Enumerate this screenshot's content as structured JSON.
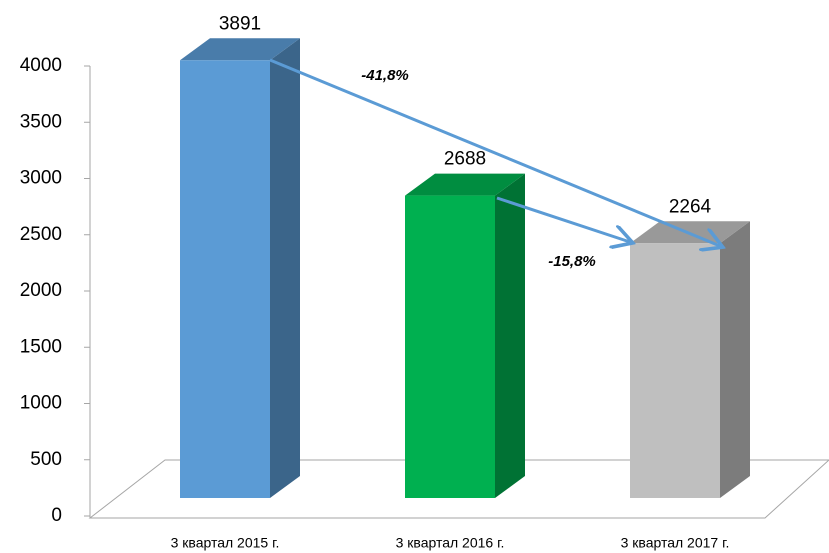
{
  "chart_data": {
    "type": "bar3d",
    "categories": [
      "3 квартал 2015 г.",
      "3 квартал 2016 г.",
      "3 квартал 2017 г."
    ],
    "values": [
      3891,
      2688,
      2264
    ],
    "colors": [
      "#5b9bd5",
      "#00b050",
      "#bfbfbf"
    ],
    "ylim": [
      0,
      4000
    ],
    "yticks": [
      0,
      500,
      1000,
      1500,
      2000,
      2500,
      3000,
      3500,
      4000
    ],
    "annotations": [
      "-41,8%",
      "-15,8%"
    ]
  }
}
